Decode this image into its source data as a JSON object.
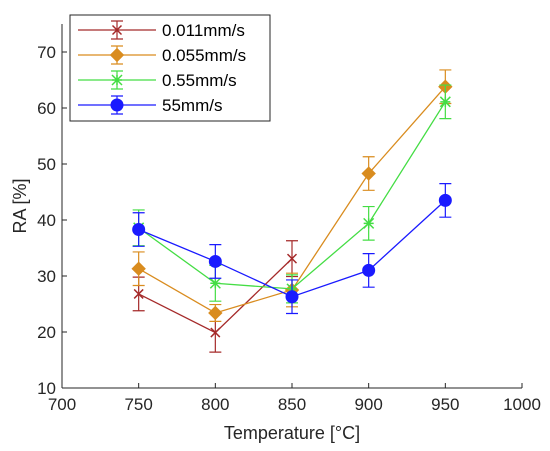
{
  "chart_data": {
    "type": "line",
    "xlabel": "Temperature [°C]",
    "ylabel": "RA [%]",
    "xlim": [
      700,
      1000
    ],
    "ylim": [
      10,
      75
    ],
    "xticks": [
      700,
      750,
      800,
      850,
      900,
      950,
      1000
    ],
    "yticks": [
      10,
      20,
      30,
      40,
      50,
      60,
      70
    ],
    "grid": false,
    "legend_position": "top-left",
    "series": [
      {
        "name": "0.011mm/s",
        "color": "#a52a2a",
        "marker": "x",
        "x": [
          750,
          800,
          850
        ],
        "y": [
          26.8,
          19.9,
          33.1
        ],
        "err": [
          3.0,
          3.5,
          3.2
        ]
      },
      {
        "name": "0.055mm/s",
        "color": "#d98c1f",
        "marker": "diamond",
        "x": [
          750,
          800,
          850,
          900,
          950
        ],
        "y": [
          31.3,
          23.4,
          27.5,
          48.3,
          63.8
        ],
        "err": [
          3.0,
          1.5,
          3.0,
          3.0,
          3.0
        ]
      },
      {
        "name": "0.55mm/s",
        "color": "#44dd44",
        "marker": "star",
        "x": [
          750,
          800,
          850,
          900,
          950
        ],
        "y": [
          38.6,
          28.7,
          27.7,
          39.4,
          61.1
        ],
        "err": [
          3.2,
          3.2,
          2.5,
          3.0,
          3.0
        ]
      },
      {
        "name": "55mm/s",
        "color": "#1a1aff",
        "marker": "circle",
        "x": [
          750,
          800,
          850,
          900,
          950
        ],
        "y": [
          38.3,
          32.6,
          26.3,
          31.0,
          43.5
        ],
        "err": [
          3.0,
          3.0,
          3.0,
          3.0,
          3.0
        ]
      }
    ]
  }
}
